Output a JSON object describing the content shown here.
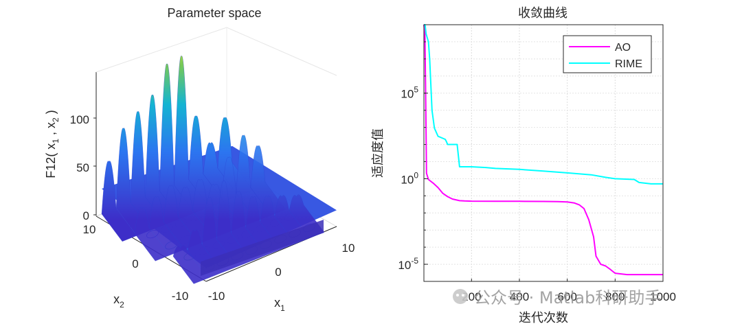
{
  "chart_data": [
    {
      "type": "surface",
      "title": "Parameter space",
      "xlabel": "x",
      "xlabel_sub": "1",
      "ylabel": "x",
      "ylabel_sub": "2",
      "zlabel": "F12( x",
      "zlabel_sub1": "1",
      "zlabel_mid": " , x",
      "zlabel_sub2": "2",
      "zlabel_end": " )",
      "x_ticks": [
        "-10",
        "0",
        "10"
      ],
      "y_ticks": [
        "-10",
        "0",
        "10"
      ],
      "z_ticks": [
        "0",
        "50",
        "100"
      ],
      "xlim": [
        -10,
        10
      ],
      "ylim": [
        -10,
        10
      ],
      "zlim": [
        0,
        140
      ],
      "colormap": "parula",
      "contours": true
    },
    {
      "type": "line",
      "title": "收敛曲线",
      "xlabel": "迭代次数",
      "ylabel": "适应度值",
      "x_ticks": [
        "200",
        "400",
        "600",
        "800",
        "1000"
      ],
      "y_tick_base": "10",
      "y_tick_exps": [
        "5",
        "0",
        "-5"
      ],
      "xlim": [
        1,
        1000
      ],
      "ylim": [
        1e-06,
        1000000000.0
      ],
      "yscale": "log",
      "grid": true,
      "legend_position": "top-right",
      "series": [
        {
          "name": "AO",
          "color": "#ff00ff",
          "points": [
            [
              1,
              1000000000.0
            ],
            [
              5,
              300000000.0
            ],
            [
              8,
              300000.0
            ],
            [
              12,
              2.1
            ],
            [
              20,
              0.9
            ],
            [
              40,
              0.55
            ],
            [
              60,
              0.3
            ],
            [
              80,
              0.14
            ],
            [
              100,
              0.09
            ],
            [
              120,
              0.065
            ],
            [
              150,
              0.052
            ],
            [
              170,
              0.05
            ],
            [
              200,
              0.049
            ],
            [
              300,
              0.048
            ],
            [
              400,
              0.048
            ],
            [
              500,
              0.047
            ],
            [
              560,
              0.046
            ],
            [
              600,
              0.044
            ],
            [
              630,
              0.038
            ],
            [
              650,
              0.03
            ],
            [
              670,
              0.018
            ],
            [
              690,
              0.004
            ],
            [
              710,
              0.0004
            ],
            [
              720,
              3e-05
            ],
            [
              740,
              1e-05
            ],
            [
              760,
              8e-06
            ],
            [
              780,
              5e-06
            ],
            [
              800,
              3e-06
            ],
            [
              850,
              2.5e-06
            ],
            [
              1000,
              2.5e-06
            ]
          ]
        },
        {
          "name": "RIME",
          "color": "#00ffff",
          "points": [
            [
              1,
              1000000000.0
            ],
            [
              6,
              1000000000.0
            ],
            [
              10,
              300000000.0
            ],
            [
              20,
              100000000.0
            ],
            [
              25,
              10000000.0
            ],
            [
              35,
              10000.0
            ],
            [
              45,
              900
            ],
            [
              60,
              300
            ],
            [
              90,
              200
            ],
            [
              95,
              150
            ],
            [
              100,
              100
            ],
            [
              140,
              100
            ],
            [
              150,
              5
            ],
            [
              200,
              5
            ],
            [
              260,
              4.5
            ],
            [
              300,
              4
            ],
            [
              400,
              3.5
            ],
            [
              500,
              2.8
            ],
            [
              600,
              2.2
            ],
            [
              700,
              1.7
            ],
            [
              760,
              1.2
            ],
            [
              800,
              1.0
            ],
            [
              880,
              0.9
            ],
            [
              900,
              0.6
            ],
            [
              950,
              0.5
            ],
            [
              1000,
              0.5
            ]
          ]
        }
      ]
    }
  ],
  "watermark": "公众号 · Matlab科研助手"
}
